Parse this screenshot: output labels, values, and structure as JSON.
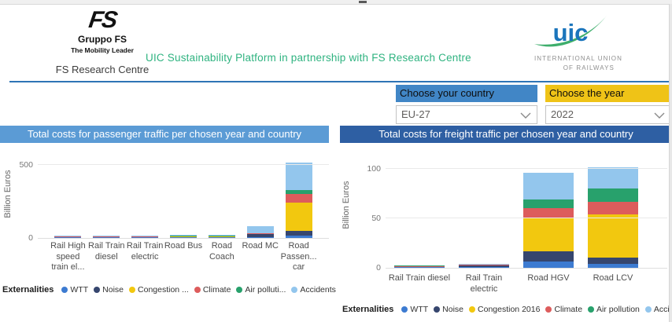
{
  "header": {
    "fs_logo": {
      "monogram": "FS",
      "line1": "Gruppo FS",
      "line2": "The Mobility Leader",
      "line3": "FS Research Centre"
    },
    "title": "UIC Sustainability Platform in partnership with FS Research Centre",
    "title_color": "#2FB380",
    "uic_logo": {
      "wordmark": "uic",
      "line1": "INTERNATIONAL UNION",
      "line2": "OF RAILWAYS",
      "wordmark_color": "#1B75BC",
      "swoosh_color": "#3EAE6C"
    },
    "rule_color": "#2E74B5"
  },
  "filters": {
    "country": {
      "label": "Choose your country",
      "value": "EU-27",
      "header_color": "#4186C6"
    },
    "year": {
      "label": "Choose the year",
      "value": "2022",
      "header_color": "#EFC317"
    }
  },
  "chart_data": [
    {
      "type": "bar",
      "stacked": true,
      "title": "Total costs for passenger traffic per chosen year and country",
      "title_bg": "#5B9BD5",
      "ylabel": "Billion Euros",
      "ylim": [
        0,
        590
      ],
      "yticks": [
        0,
        500
      ],
      "grid": true,
      "legend_position": "bottom",
      "legend_title": "Externalities",
      "legend_labels": [
        "WTT",
        "Noise",
        "Congestion ...",
        "Climate",
        "Air polluti...",
        "Accidents"
      ],
      "categories": [
        "Rail High speed train el...",
        "Rail Train diesel",
        "Rail Train electric",
        "Road Bus",
        "Road Coach",
        "Road MC",
        "Road Passen... car"
      ],
      "series": [
        {
          "name": "WTT",
          "color": "#3D7BD1",
          "values": [
            0.5,
            1.0,
            3.0,
            1.0,
            0.5,
            2.0,
            18
          ]
        },
        {
          "name": "Noise",
          "color": "#36466E",
          "values": [
            0.3,
            0.5,
            1.0,
            0.5,
            0.3,
            22,
            32
          ]
        },
        {
          "name": "Congestion",
          "color": "#F2C80F",
          "values": [
            0,
            0,
            0,
            2.0,
            1.0,
            2.0,
            190
          ]
        },
        {
          "name": "Climate",
          "color": "#DD5C5C",
          "values": [
            0.2,
            1.0,
            0.5,
            1.0,
            0.5,
            2.0,
            60
          ]
        },
        {
          "name": "Air pollution",
          "color": "#28A16C",
          "values": [
            0.2,
            1.0,
            0.5,
            0.5,
            0.3,
            1.0,
            28
          ]
        },
        {
          "name": "Accidents",
          "color": "#93C6ED",
          "values": [
            1.0,
            1.0,
            2.0,
            1.0,
            1.5,
            44,
            185
          ]
        }
      ]
    },
    {
      "type": "bar",
      "stacked": true,
      "title": "Total costs for freight traffic per chosen year and country",
      "title_bg": "#2E5FA3",
      "ylabel": "Billion Euros",
      "ylim": [
        0,
        108
      ],
      "yticks": [
        0,
        50,
        100
      ],
      "grid": true,
      "legend_position": "bottom",
      "legend_title": "Externalities",
      "legend_labels": [
        "WTT",
        "Noise",
        "Congestion 2016",
        "Climate",
        "Air pollution",
        "Accidents"
      ],
      "categories": [
        "Rail Train diesel",
        "Rail Train electric",
        "Road HGV",
        "Road LCV"
      ],
      "series": [
        {
          "name": "WTT",
          "color": "#3D7BD1",
          "values": [
            0.2,
            0.5,
            6,
            4
          ]
        },
        {
          "name": "Noise",
          "color": "#36466E",
          "values": [
            0.2,
            2.0,
            11,
            6
          ]
        },
        {
          "name": "Congestion",
          "color": "#F2C80F",
          "values": [
            0,
            0,
            33,
            44
          ]
        },
        {
          "name": "Climate",
          "color": "#DD5C5C",
          "values": [
            0.3,
            0.3,
            10,
            13
          ]
        },
        {
          "name": "Air pollution",
          "color": "#28A16C",
          "values": [
            0.6,
            0.2,
            9,
            13
          ]
        },
        {
          "name": "Accidents",
          "color": "#93C6ED",
          "values": [
            0.2,
            0.3,
            27,
            22
          ]
        }
      ]
    }
  ]
}
